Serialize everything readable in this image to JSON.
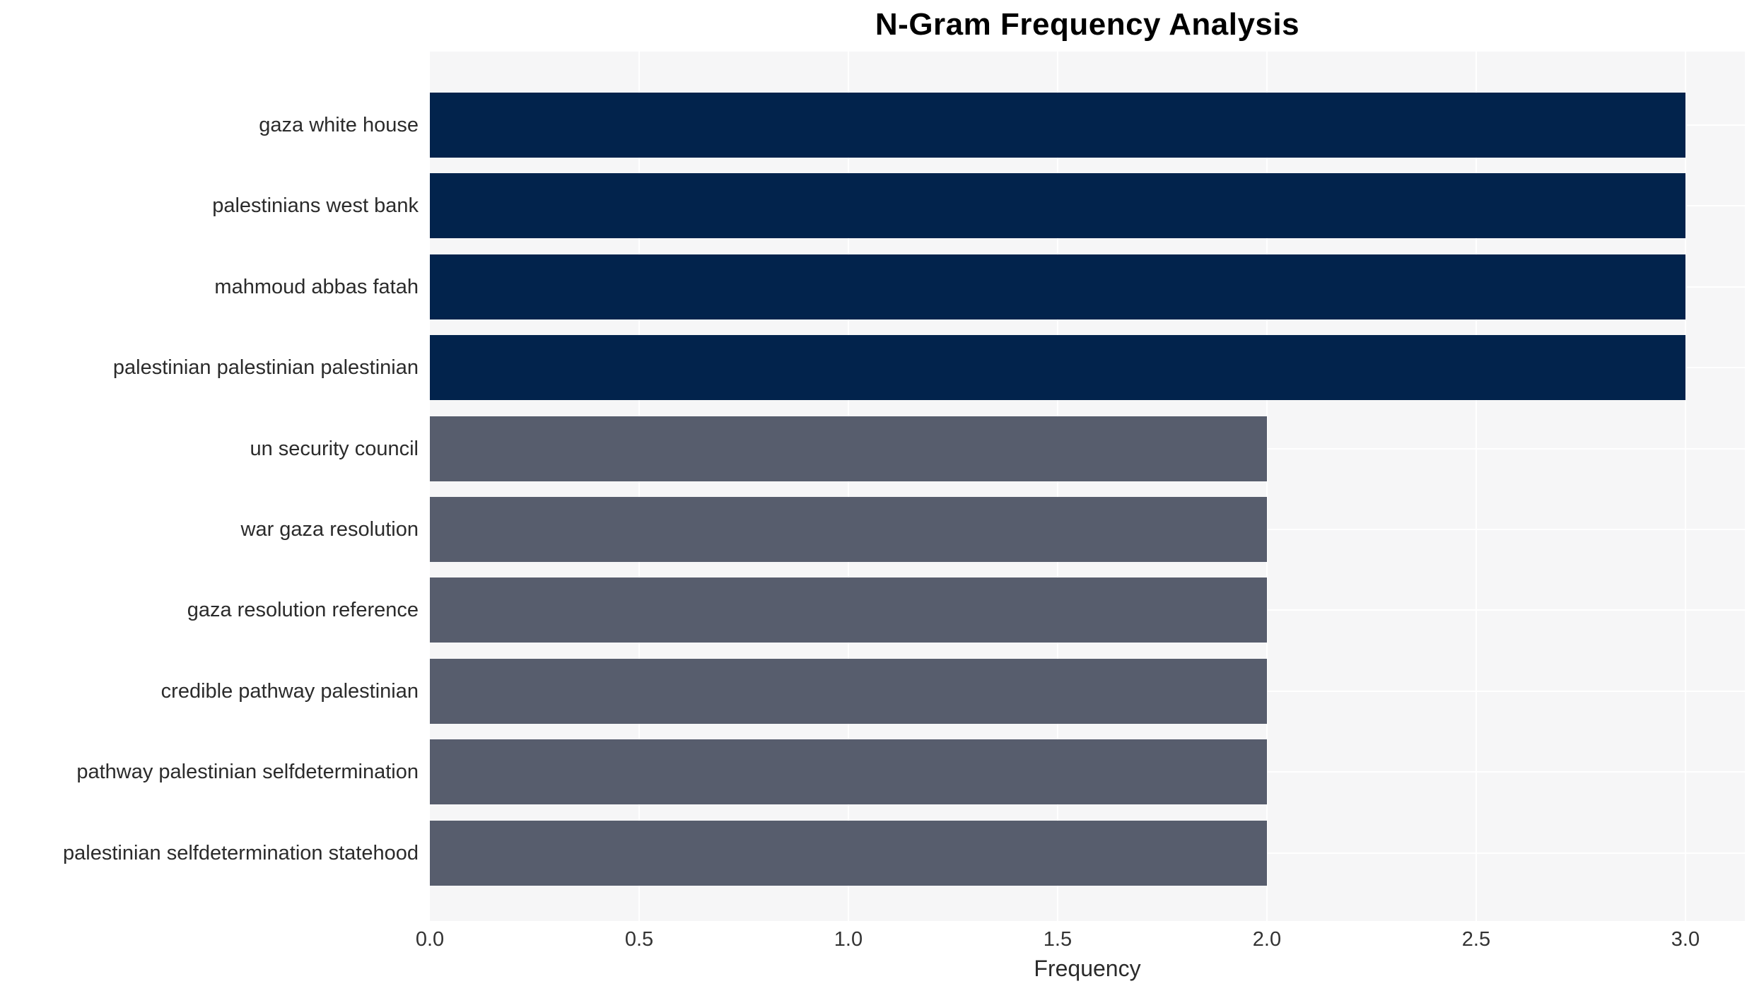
{
  "chart_data": {
    "type": "bar",
    "orientation": "horizontal",
    "title": "N-Gram Frequency Analysis",
    "xlabel": "Frequency",
    "ylabel": "",
    "categories": [
      "gaza white house",
      "palestinians west bank",
      "mahmoud abbas fatah",
      "palestinian palestinian palestinian",
      "un security council",
      "war gaza resolution",
      "gaza resolution reference",
      "credible pathway palestinian",
      "pathway palestinian selfdetermination",
      "palestinian selfdetermination statehood"
    ],
    "values": [
      3,
      3,
      3,
      3,
      2,
      2,
      2,
      2,
      2,
      2
    ],
    "bar_colors": [
      "#02234c",
      "#02234c",
      "#02234c",
      "#02234c",
      "#575d6d",
      "#575d6d",
      "#575d6d",
      "#575d6d",
      "#575d6d",
      "#575d6d"
    ],
    "xlim": [
      0,
      3.142
    ],
    "xticks": [
      "0.0",
      "0.5",
      "1.0",
      "1.5",
      "2.0",
      "2.5",
      "3.0"
    ],
    "grid": true,
    "legend_position": "none",
    "colors": {
      "high_freq_bar": "#02234c",
      "low_freq_bar": "#575d6d",
      "plot_background": "#f6f6f7",
      "gridline": "#ffffff",
      "label_text": "#2b2b2b",
      "title_text": "#000000"
    }
  }
}
